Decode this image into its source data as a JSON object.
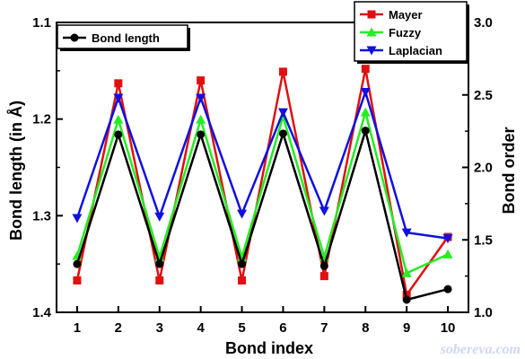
{
  "chart_data": {
    "type": "line",
    "xlabel": "Bond index",
    "ylabel_left": "Bond length (in Å)",
    "ylabel_right": "Bond order",
    "x": [
      1,
      2,
      3,
      4,
      5,
      6,
      7,
      8,
      9,
      10
    ],
    "x_ticks": [
      "1",
      "2",
      "3",
      "4",
      "5",
      "6",
      "7",
      "8",
      "9",
      "10"
    ],
    "xlim": [
      0.5,
      10.5
    ],
    "left_axis": {
      "lim": [
        1.1,
        1.4
      ],
      "reversed": true,
      "ticks": [
        1.1,
        1.2,
        1.3,
        1.4
      ],
      "tick_labels": [
        "1.1",
        "1.2",
        "1.3",
        "1.4"
      ]
    },
    "right_axis": {
      "lim": [
        1.0,
        3.0
      ],
      "ticks": [
        1.0,
        1.5,
        2.0,
        2.5,
        3.0
      ],
      "tick_labels": [
        "1.0",
        "1.5",
        "2.0",
        "2.5",
        "3.0"
      ]
    },
    "series": [
      {
        "name": "Bond length",
        "axis": "left",
        "color": "#000000",
        "marker": "circle",
        "values": [
          1.35,
          1.216,
          1.35,
          1.216,
          1.35,
          1.215,
          1.352,
          1.212,
          1.387,
          1.376
        ]
      },
      {
        "name": "Mayer",
        "axis": "right",
        "color": "#e01010",
        "marker": "square",
        "values": [
          1.22,
          2.58,
          1.22,
          2.6,
          1.22,
          2.66,
          1.25,
          2.68,
          1.12,
          1.52
        ]
      },
      {
        "name": "Fuzzy",
        "axis": "right",
        "color": "#22ee22",
        "marker": "triangle-up",
        "values": [
          1.39,
          2.33,
          1.38,
          2.33,
          1.38,
          2.35,
          1.38,
          2.38,
          1.27,
          1.4
        ]
      },
      {
        "name": "Laplacian",
        "axis": "right",
        "color": "#1010e0",
        "marker": "triangle-down",
        "values": [
          1.65,
          2.48,
          1.66,
          2.48,
          1.68,
          2.38,
          1.7,
          2.52,
          1.55,
          1.51
        ]
      }
    ],
    "legend_left": {
      "placement": "top-left",
      "entries": [
        "Bond length"
      ]
    },
    "legend_right": {
      "placement": "top-right",
      "entries": [
        "Mayer",
        "Fuzzy",
        "Laplacian"
      ]
    },
    "grid": false
  },
  "watermark": "sobereva.com"
}
